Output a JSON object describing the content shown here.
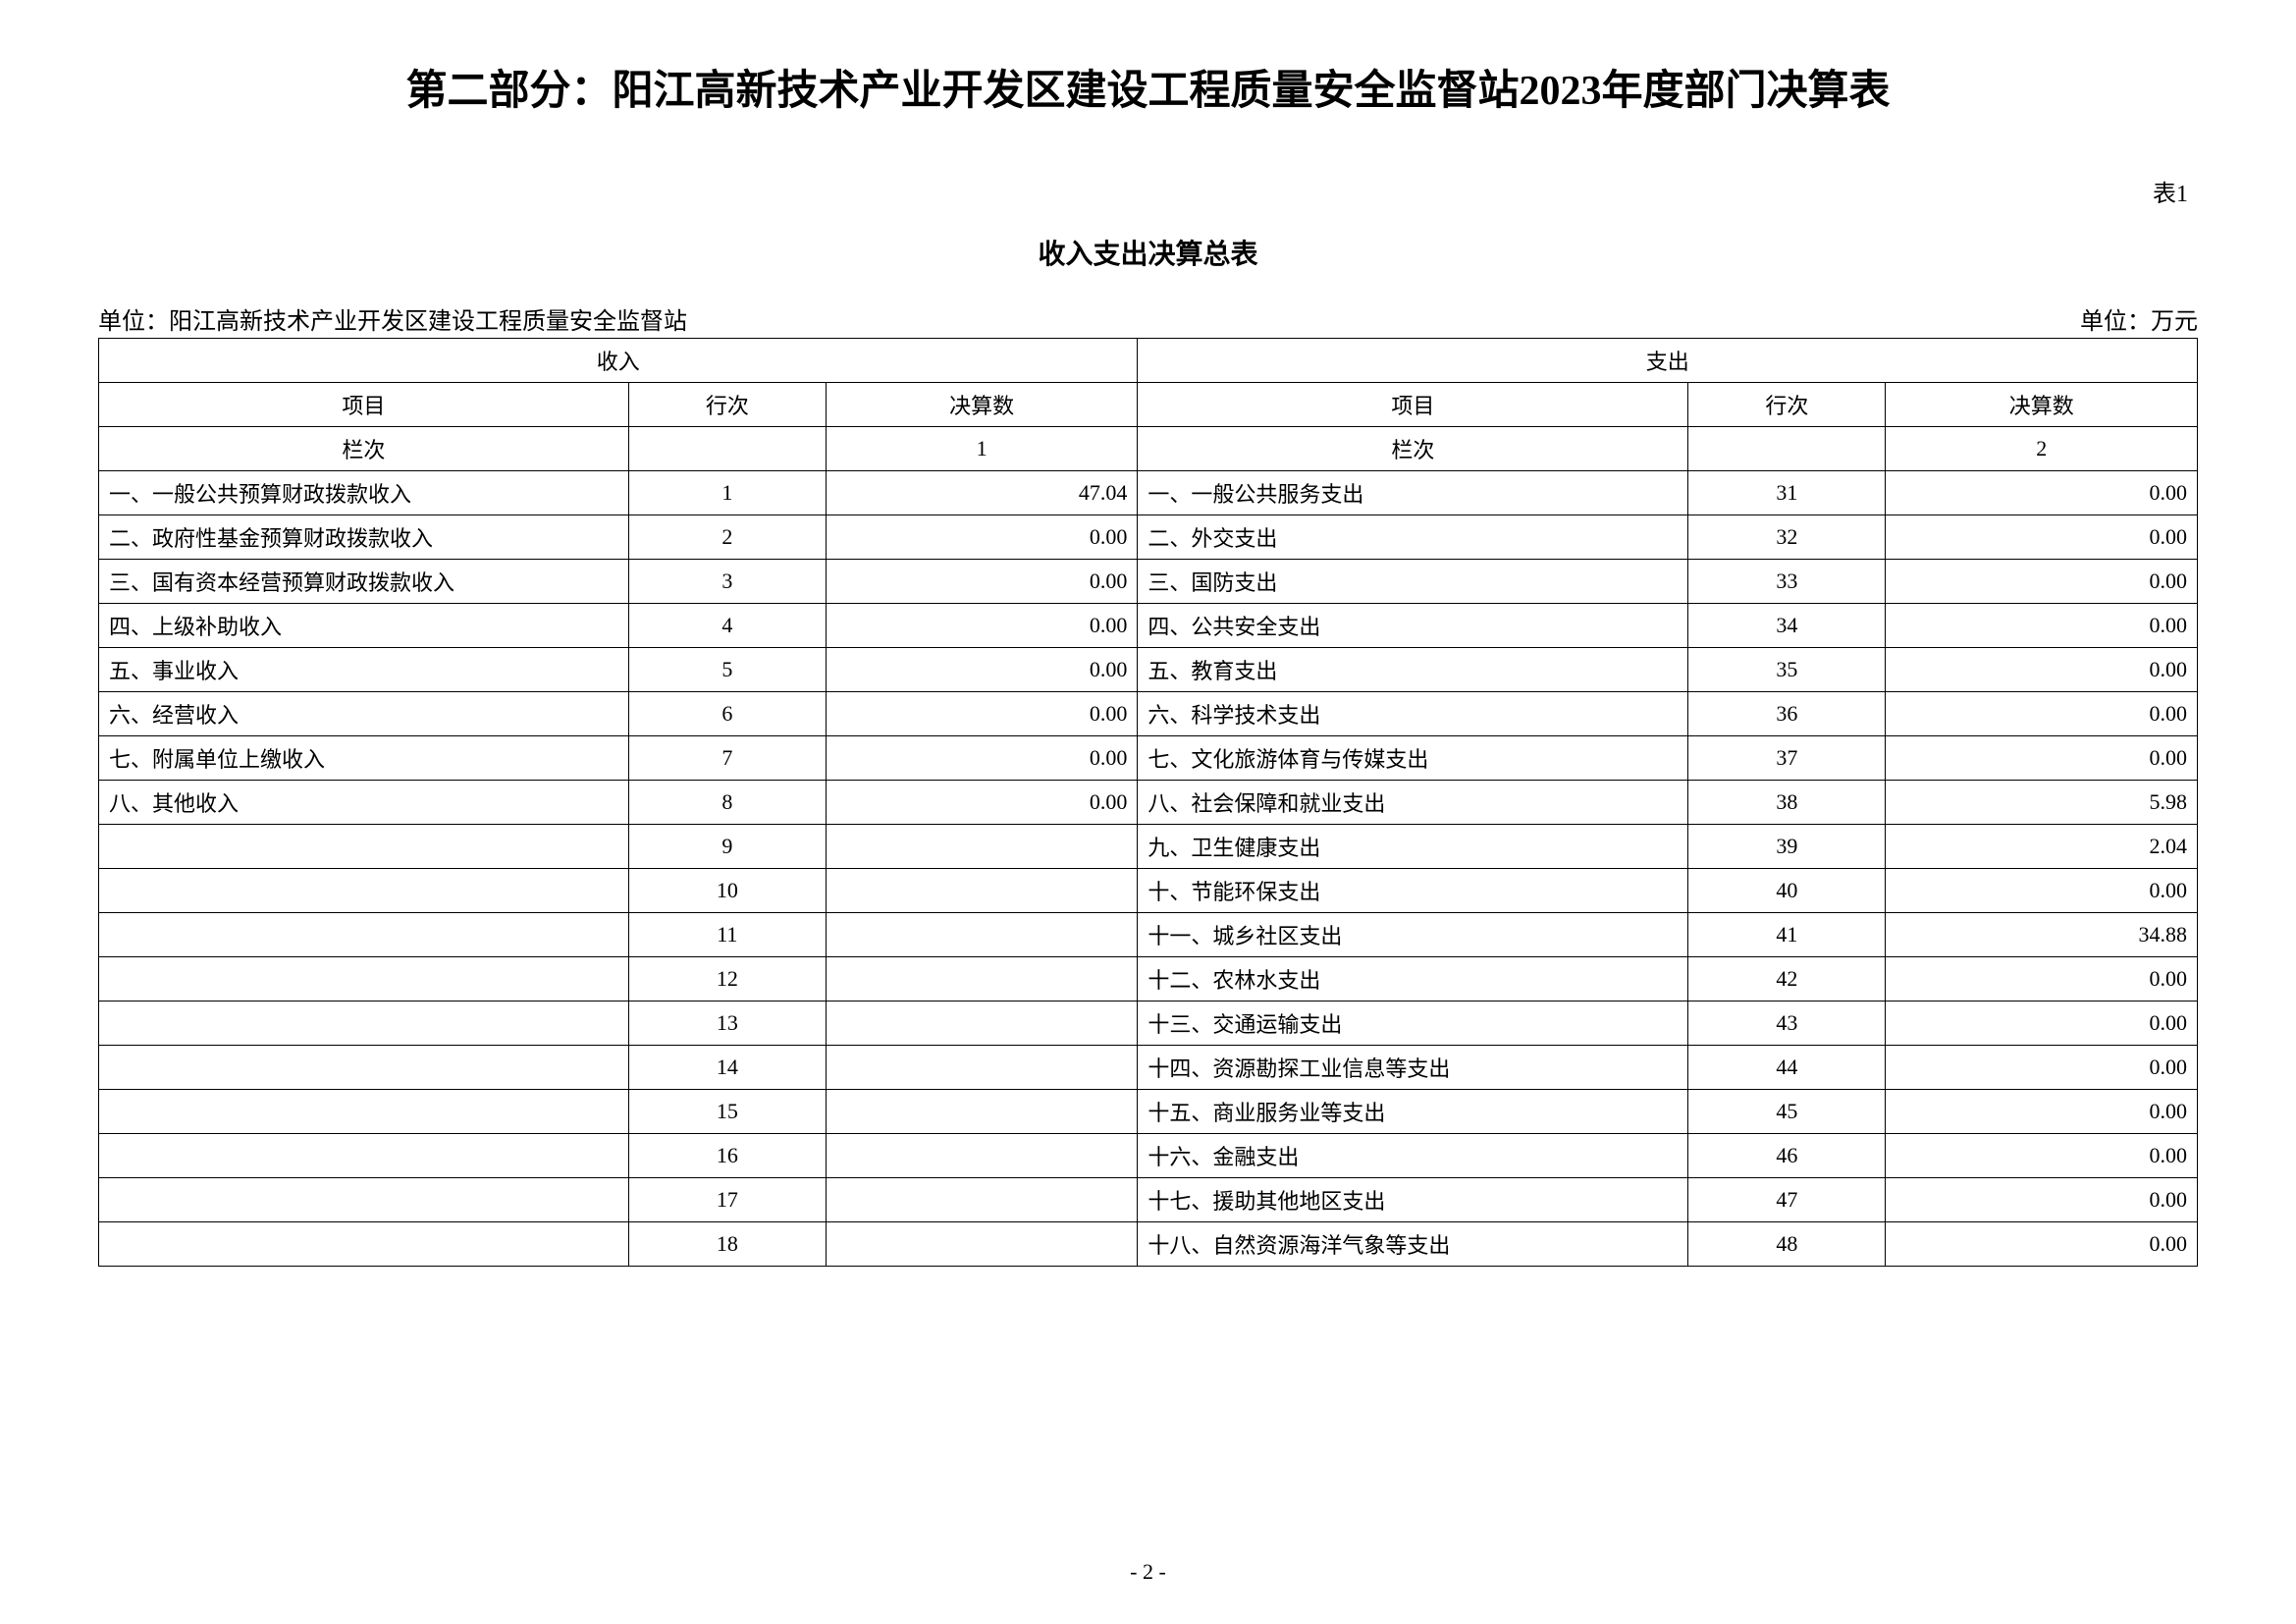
{
  "title": "第二部分：阳江高新技术产业开发区建设工程质量安全监督站2023年度部门决算表",
  "tableLabel": "表1",
  "tableTitle": "收入支出决算总表",
  "unitLeft": "单位：阳江高新技术产业开发区建设工程质量安全监督站",
  "unitRight": "单位：万元",
  "pageNumber": "- 2 -",
  "headers": {
    "income": "收入",
    "expense": "支出",
    "item": "项目",
    "rowNum": "行次",
    "amount": "决算数",
    "colNum": "栏次",
    "col1": "1",
    "col2": "2"
  },
  "rows": [
    {
      "incomeItem": "一、一般公共预算财政拨款收入",
      "incomeRow": "1",
      "incomeAmount": "47.04",
      "expenseItem": "一、一般公共服务支出",
      "expenseRow": "31",
      "expenseAmount": "0.00"
    },
    {
      "incomeItem": "二、政府性基金预算财政拨款收入",
      "incomeRow": "2",
      "incomeAmount": "0.00",
      "expenseItem": "二、外交支出",
      "expenseRow": "32",
      "expenseAmount": "0.00"
    },
    {
      "incomeItem": "三、国有资本经营预算财政拨款收入",
      "incomeRow": "3",
      "incomeAmount": "0.00",
      "expenseItem": "三、国防支出",
      "expenseRow": "33",
      "expenseAmount": "0.00"
    },
    {
      "incomeItem": "四、上级补助收入",
      "incomeRow": "4",
      "incomeAmount": "0.00",
      "expenseItem": "四、公共安全支出",
      "expenseRow": "34",
      "expenseAmount": "0.00"
    },
    {
      "incomeItem": "五、事业收入",
      "incomeRow": "5",
      "incomeAmount": "0.00",
      "expenseItem": "五、教育支出",
      "expenseRow": "35",
      "expenseAmount": "0.00"
    },
    {
      "incomeItem": "六、经营收入",
      "incomeRow": "6",
      "incomeAmount": "0.00",
      "expenseItem": "六、科学技术支出",
      "expenseRow": "36",
      "expenseAmount": "0.00"
    },
    {
      "incomeItem": "七、附属单位上缴收入",
      "incomeRow": "7",
      "incomeAmount": "0.00",
      "expenseItem": "七、文化旅游体育与传媒支出",
      "expenseRow": "37",
      "expenseAmount": "0.00"
    },
    {
      "incomeItem": "八、其他收入",
      "incomeRow": "8",
      "incomeAmount": "0.00",
      "expenseItem": "八、社会保障和就业支出",
      "expenseRow": "38",
      "expenseAmount": "5.98"
    },
    {
      "incomeItem": "",
      "incomeRow": "9",
      "incomeAmount": "",
      "expenseItem": "九、卫生健康支出",
      "expenseRow": "39",
      "expenseAmount": "2.04"
    },
    {
      "incomeItem": "",
      "incomeRow": "10",
      "incomeAmount": "",
      "expenseItem": "十、节能环保支出",
      "expenseRow": "40",
      "expenseAmount": "0.00"
    },
    {
      "incomeItem": "",
      "incomeRow": "11",
      "incomeAmount": "",
      "expenseItem": "十一、城乡社区支出",
      "expenseRow": "41",
      "expenseAmount": "34.88"
    },
    {
      "incomeItem": "",
      "incomeRow": "12",
      "incomeAmount": "",
      "expenseItem": "十二、农林水支出",
      "expenseRow": "42",
      "expenseAmount": "0.00"
    },
    {
      "incomeItem": "",
      "incomeRow": "13",
      "incomeAmount": "",
      "expenseItem": "十三、交通运输支出",
      "expenseRow": "43",
      "expenseAmount": "0.00"
    },
    {
      "incomeItem": "",
      "incomeRow": "14",
      "incomeAmount": "",
      "expenseItem": "十四、资源勘探工业信息等支出",
      "expenseRow": "44",
      "expenseAmount": "0.00"
    },
    {
      "incomeItem": "",
      "incomeRow": "15",
      "incomeAmount": "",
      "expenseItem": "十五、商业服务业等支出",
      "expenseRow": "45",
      "expenseAmount": "0.00"
    },
    {
      "incomeItem": "",
      "incomeRow": "16",
      "incomeAmount": "",
      "expenseItem": "十六、金融支出",
      "expenseRow": "46",
      "expenseAmount": "0.00"
    },
    {
      "incomeItem": "",
      "incomeRow": "17",
      "incomeAmount": "",
      "expenseItem": "十七、援助其他地区支出",
      "expenseRow": "47",
      "expenseAmount": "0.00"
    },
    {
      "incomeItem": "",
      "incomeRow": "18",
      "incomeAmount": "",
      "expenseItem": "十八、自然资源海洋气象等支出",
      "expenseRow": "48",
      "expenseAmount": "0.00"
    }
  ]
}
